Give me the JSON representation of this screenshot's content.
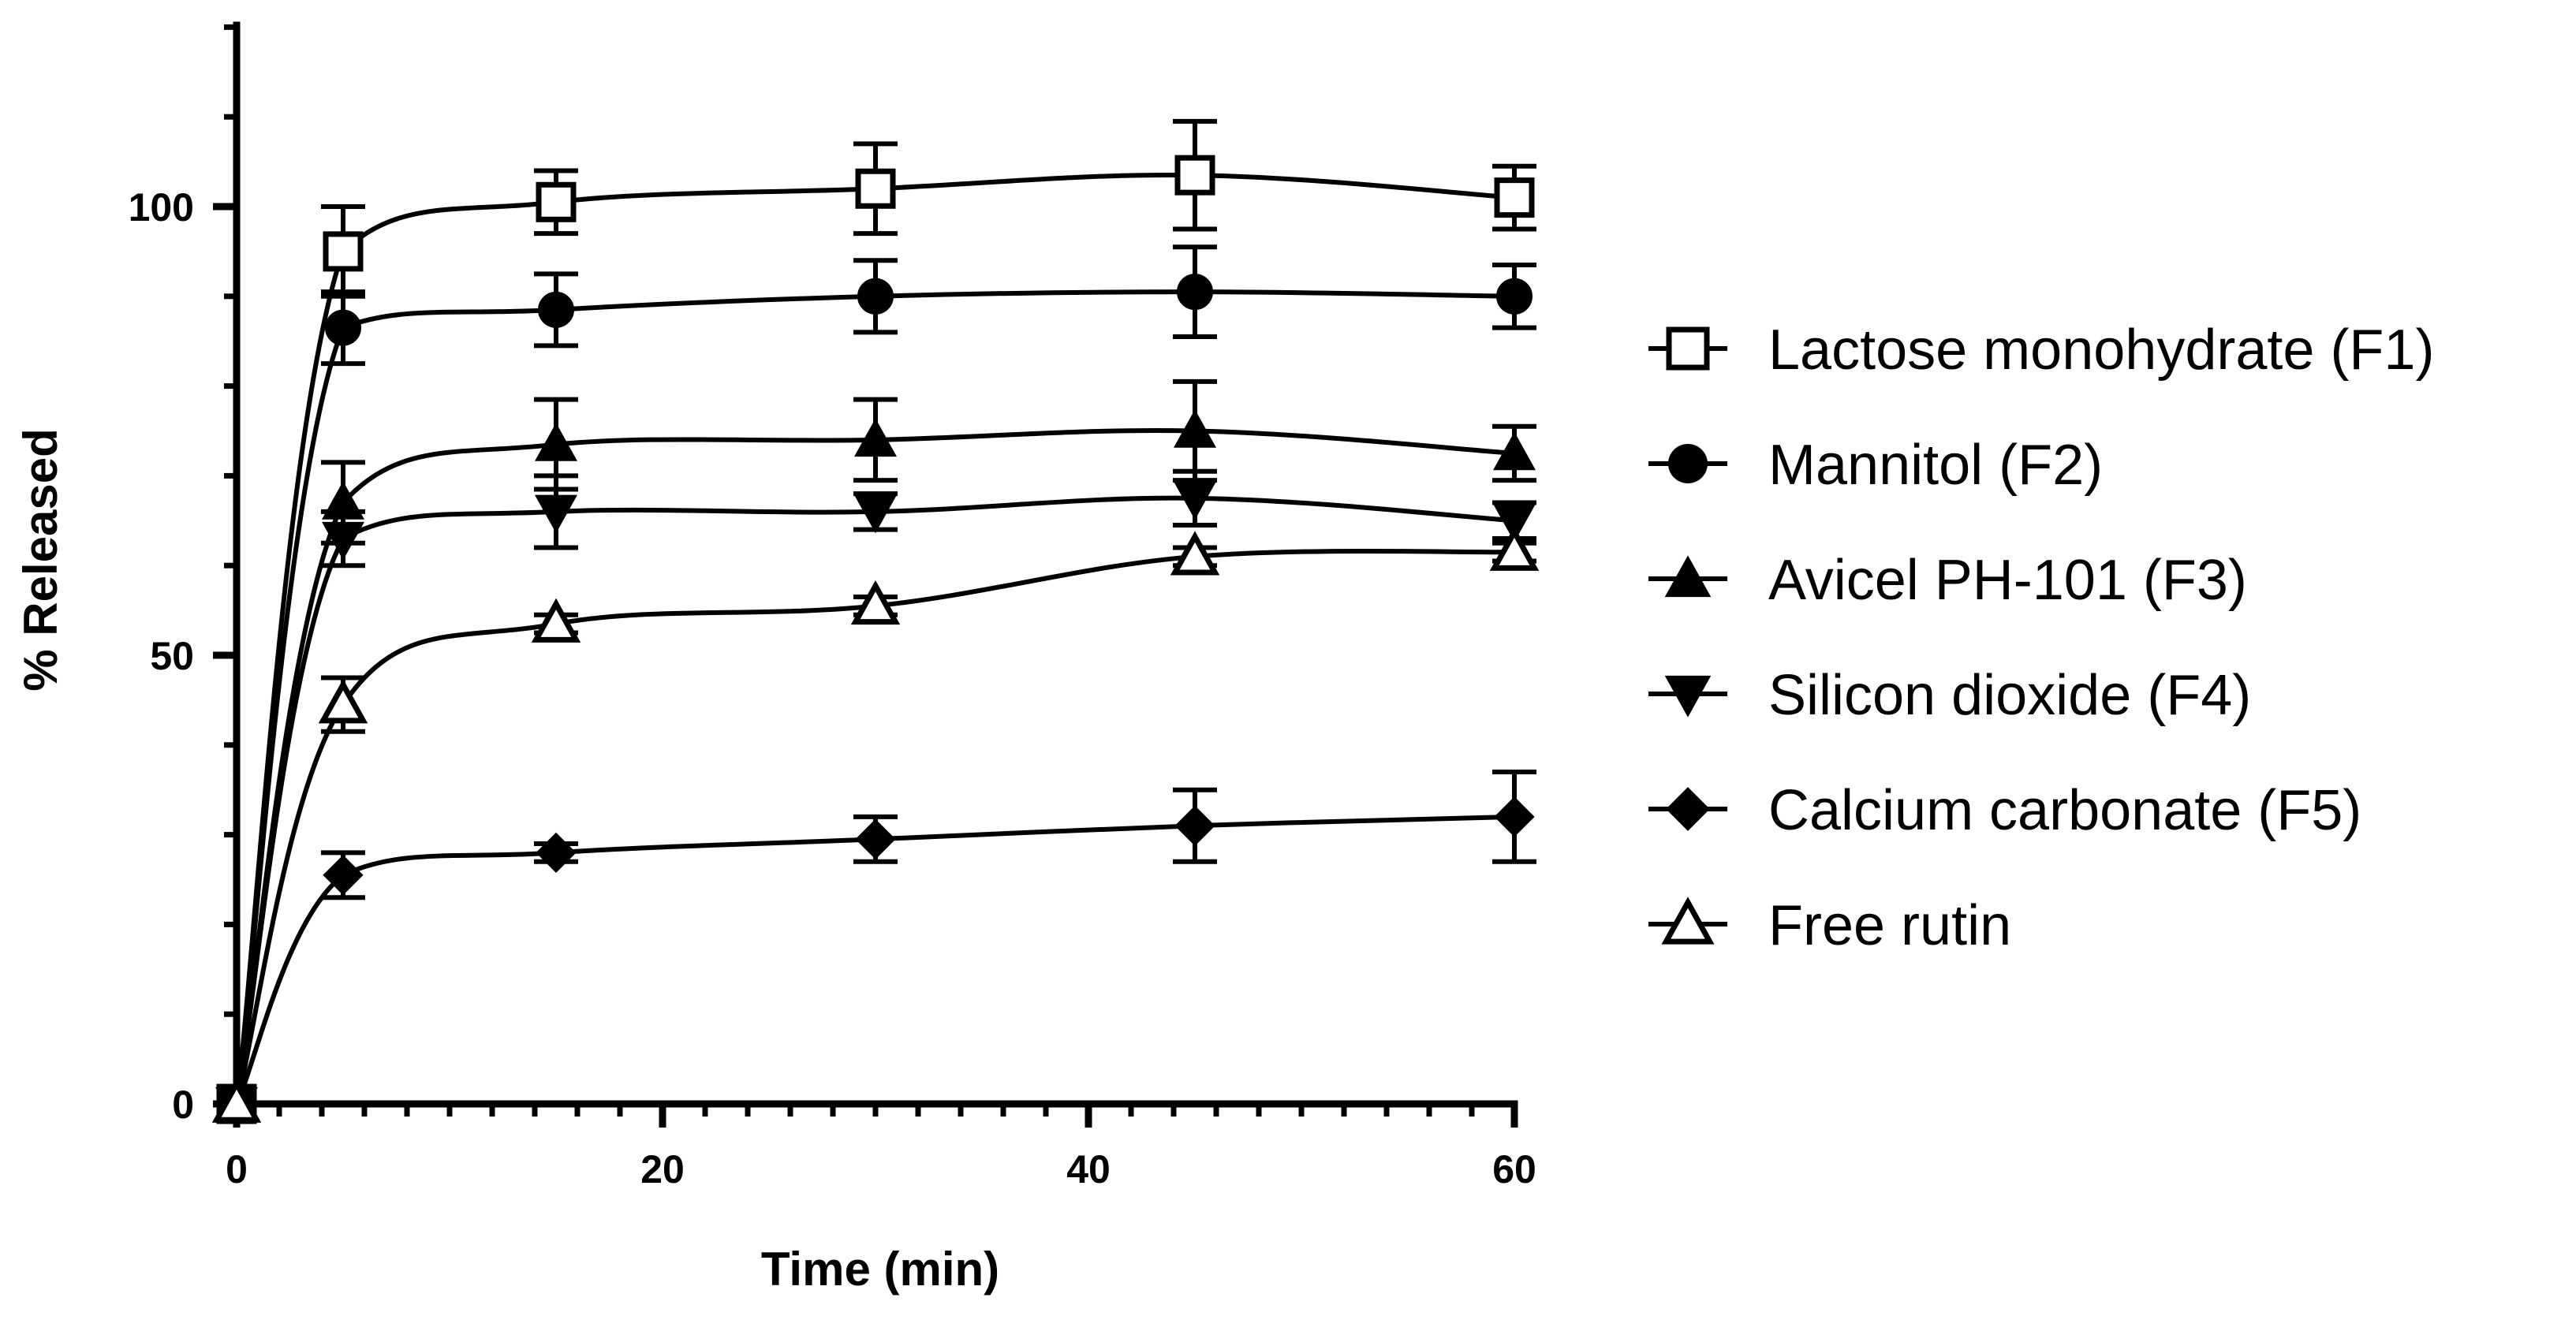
{
  "chart_data": {
    "type": "line",
    "title": "",
    "xlabel": "Time (min)",
    "ylabel": "% Released",
    "xlim": [
      0,
      60
    ],
    "ylim": [
      0,
      120
    ],
    "xticks": [
      0,
      20,
      40,
      60
    ],
    "xtick_labels": [
      "0",
      "20",
      "40",
      "60"
    ],
    "yticks": [
      0,
      50,
      100
    ],
    "ytick_labels": [
      "0",
      "50",
      "100"
    ],
    "x_minor_step": 2,
    "y_minor_step": 10,
    "grid": false,
    "legend_position": "right",
    "x": [
      0,
      5,
      15,
      30,
      45,
      60
    ],
    "series": [
      {
        "name": "Lactose monohydrate (F1)",
        "marker": "open-square",
        "values": [
          0,
          95,
          100.5,
          102,
          103.5,
          101
        ],
        "errors": [
          0,
          5,
          3.5,
          5,
          6,
          3.5
        ]
      },
      {
        "name": "Mannitol (F2)",
        "marker": "filled-circle",
        "values": [
          0,
          86.5,
          88.5,
          90,
          90.5,
          90
        ],
        "errors": [
          0,
          4,
          4,
          4,
          5,
          3.5
        ]
      },
      {
        "name": "Avicel PH-101 (F3)",
        "marker": "filled-triangle-up",
        "values": [
          0,
          67,
          73.5,
          74,
          75,
          72.5
        ],
        "errors": [
          0,
          4.5,
          5,
          4.5,
          5.5,
          3
        ]
      },
      {
        "name": "Silicon dioxide (F4)",
        "marker": "filled-triangle-down",
        "values": [
          0,
          63,
          66,
          66,
          67.5,
          65
        ],
        "errors": [
          0,
          3,
          4,
          2,
          3,
          2
        ]
      },
      {
        "name": "Calcium carbonate (F5)",
        "marker": "filled-diamond",
        "values": [
          0,
          25.5,
          28,
          29.5,
          31,
          32
        ],
        "errors": [
          0,
          2.5,
          1,
          2.5,
          4,
          5
        ]
      },
      {
        "name": "Free rutin",
        "marker": "open-triangle-up",
        "values": [
          0,
          44.5,
          53.5,
          55.5,
          61,
          61.5
        ],
        "errors": [
          0,
          3,
          1,
          1,
          1,
          1
        ]
      }
    ]
  }
}
